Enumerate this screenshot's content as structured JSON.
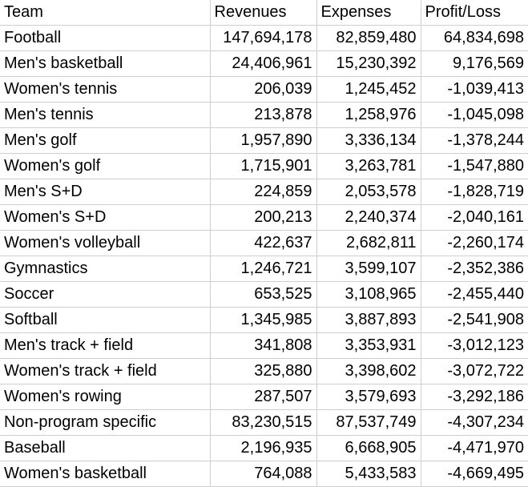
{
  "table": {
    "headers": [
      "Team",
      "Revenues",
      "Expenses",
      "Profit/Loss"
    ],
    "rows": [
      {
        "team": "Football",
        "revenues": "147,694,178",
        "expenses": "82,859,480",
        "profit_loss": "64,834,698"
      },
      {
        "team": "Men's basketball",
        "revenues": "24,406,961",
        "expenses": "15,230,392",
        "profit_loss": "9,176,569"
      },
      {
        "team": "Women's tennis",
        "revenues": "206,039",
        "expenses": "1,245,452",
        "profit_loss": "-1,039,413"
      },
      {
        "team": "Men's tennis",
        "revenues": "213,878",
        "expenses": "1,258,976",
        "profit_loss": "-1,045,098"
      },
      {
        "team": "Men's golf",
        "revenues": "1,957,890",
        "expenses": "3,336,134",
        "profit_loss": "-1,378,244"
      },
      {
        "team": "Women's golf",
        "revenues": "1,715,901",
        "expenses": "3,263,781",
        "profit_loss": "-1,547,880"
      },
      {
        "team": "Men's S+D",
        "revenues": "224,859",
        "expenses": "2,053,578",
        "profit_loss": "-1,828,719"
      },
      {
        "team": "Women's S+D",
        "revenues": "200,213",
        "expenses": "2,240,374",
        "profit_loss": "-2,040,161"
      },
      {
        "team": "Women's volleyball",
        "revenues": "422,637",
        "expenses": "2,682,811",
        "profit_loss": "-2,260,174"
      },
      {
        "team": "Gymnastics",
        "revenues": "1,246,721",
        "expenses": "3,599,107",
        "profit_loss": "-2,352,386"
      },
      {
        "team": "Soccer",
        "revenues": "653,525",
        "expenses": "3,108,965",
        "profit_loss": "-2,455,440"
      },
      {
        "team": "Softball",
        "revenues": "1,345,985",
        "expenses": "3,887,893",
        "profit_loss": "-2,541,908"
      },
      {
        "team": "Men's track + field",
        "revenues": "341,808",
        "expenses": "3,353,931",
        "profit_loss": "-3,012,123"
      },
      {
        "team": "Women's track + field",
        "revenues": "325,880",
        "expenses": "3,398,602",
        "profit_loss": "-3,072,722"
      },
      {
        "team": "Women's rowing",
        "revenues": "287,507",
        "expenses": "3,579,693",
        "profit_loss": "-3,292,186"
      },
      {
        "team": "Non-program specific",
        "revenues": "83,230,515",
        "expenses": "87,537,749",
        "profit_loss": "-4,307,234"
      },
      {
        "team": "Baseball",
        "revenues": "2,196,935",
        "expenses": "6,668,905",
        "profit_loss": "-4,471,970"
      },
      {
        "team": "Women's basketball",
        "revenues": "764,088",
        "expenses": "5,433,583",
        "profit_loss": "-4,669,495"
      }
    ]
  }
}
